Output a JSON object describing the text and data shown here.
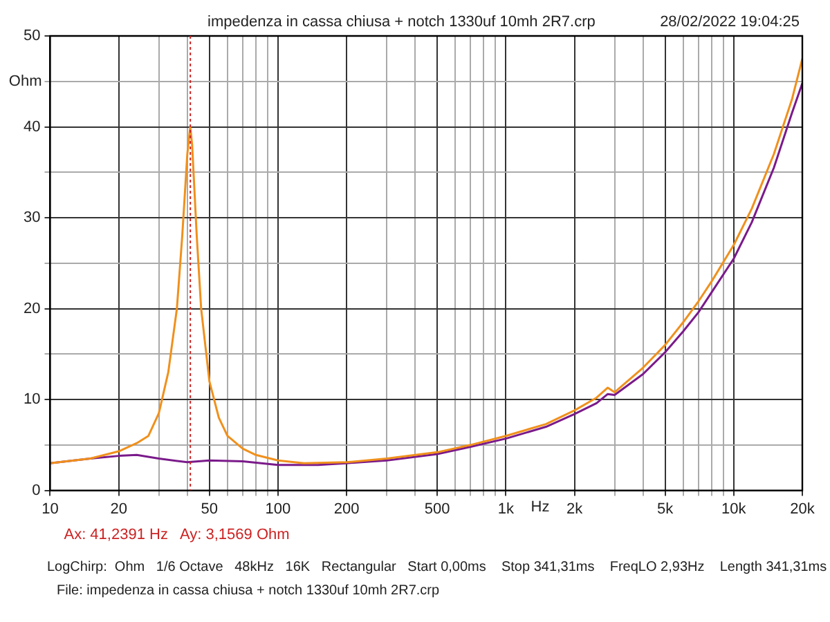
{
  "chart_data": {
    "type": "line",
    "title": "impedenza in cassa chiusa + notch 1330uf 10mh 2R7.crp",
    "subtitle": "28/02/2022 19:04:25",
    "xlabel": "Hz",
    "ylabel": "Ohm",
    "log": "x",
    "grid": true,
    "legend": false,
    "marker": "none",
    "line_style": "solid",
    "xlim": [
      10,
      20000
    ],
    "ylim": [
      0,
      50
    ],
    "xticks": [
      10,
      20,
      {
        "value": 30,
        "label": null
      },
      {
        "value": 40,
        "label": null
      },
      50,
      {
        "value": 60,
        "label": null
      },
      {
        "value": 70,
        "label": null
      },
      {
        "value": 80,
        "label": null
      },
      {
        "value": 90,
        "label": null
      },
      100,
      200,
      {
        "value": 300,
        "label": null
      },
      {
        "value": 400,
        "label": null
      },
      500,
      {
        "value": 600,
        "label": null
      },
      {
        "value": 700,
        "label": null
      },
      {
        "value": 800,
        "label": null
      },
      {
        "value": 900,
        "label": null
      },
      {
        "value": 1000,
        "label": "1k"
      },
      {
        "value": 2000,
        "label": "2k"
      },
      {
        "value": 3000,
        "label": null
      },
      {
        "value": 4000,
        "label": null
      },
      {
        "value": 5000,
        "label": "5k"
      },
      {
        "value": 6000,
        "label": null
      },
      {
        "value": 7000,
        "label": null
      },
      {
        "value": 8000,
        "label": null
      },
      {
        "value": 9000,
        "label": null
      },
      {
        "value": 10000,
        "label": "10k"
      },
      {
        "value": 20000,
        "label": "20k"
      }
    ],
    "yticks": [
      0,
      {
        "value": 5,
        "label": null
      },
      10,
      {
        "value": 15,
        "label": null
      },
      20,
      {
        "value": 25,
        "label": null
      },
      30,
      {
        "value": 35,
        "label": null
      },
      40,
      {
        "value": 45,
        "label": null
      },
      50
    ],
    "series": [
      {
        "color": "#f0901c",
        "x": [
          10,
          15,
          20,
          24,
          27,
          30,
          33,
          36,
          38,
          40,
          41.2,
          42,
          44,
          46,
          50,
          55,
          60,
          70,
          80,
          100,
          130,
          200,
          300,
          500,
          700,
          1000,
          1500,
          2000,
          2500,
          2800,
          3000,
          4000,
          5000,
          6000,
          7000,
          8000,
          10000,
          12000,
          15000,
          18000,
          20000
        ],
        "values": [
          3.0,
          3.5,
          4.3,
          5.2,
          6.0,
          8.5,
          13,
          20,
          28,
          37,
          40,
          38,
          28,
          20,
          12,
          8,
          6,
          4.6,
          3.9,
          3.3,
          3.0,
          3.1,
          3.5,
          4.2,
          5.0,
          6.0,
          7.3,
          8.8,
          10.2,
          11.3,
          10.8,
          13.5,
          16,
          18.5,
          20.8,
          23,
          27,
          31,
          37,
          43,
          47.5
        ]
      },
      {
        "color": "#7a1a8a",
        "x": [
          10,
          15,
          20,
          24,
          30,
          40,
          50,
          70,
          100,
          150,
          200,
          300,
          500,
          700,
          1000,
          1500,
          2000,
          2500,
          2800,
          3000,
          4000,
          5000,
          6000,
          7000,
          8000,
          10000,
          12000,
          15000,
          18000,
          20000
        ],
        "values": [
          3.0,
          3.5,
          3.8,
          3.9,
          3.5,
          3.1,
          3.3,
          3.2,
          2.8,
          2.8,
          3.0,
          3.3,
          4.0,
          4.8,
          5.7,
          7.0,
          8.4,
          9.6,
          10.6,
          10.5,
          12.8,
          15.2,
          17.5,
          19.6,
          21.8,
          25.5,
          29.5,
          35.5,
          41.5,
          44.8
        ]
      }
    ],
    "ref_lines": [
      {
        "axis": "x",
        "value": 41.2391,
        "label": "Ax: 41,2391 Hz   Ay: 3,1569 Ohm",
        "color": "#cc2222",
        "line_style": "dotted"
      }
    ],
    "annotations": [
      "LogChirp:  Ohm   1/6 Octave   48kHz   16K   Rectangular   Start 0,00ms    Stop 341,31ms    FreqLO 2,93Hz    Length 341,31ms",
      "File: impedenza in cassa chiusa + notch 1330uf 10mh 2R7.crp"
    ]
  }
}
